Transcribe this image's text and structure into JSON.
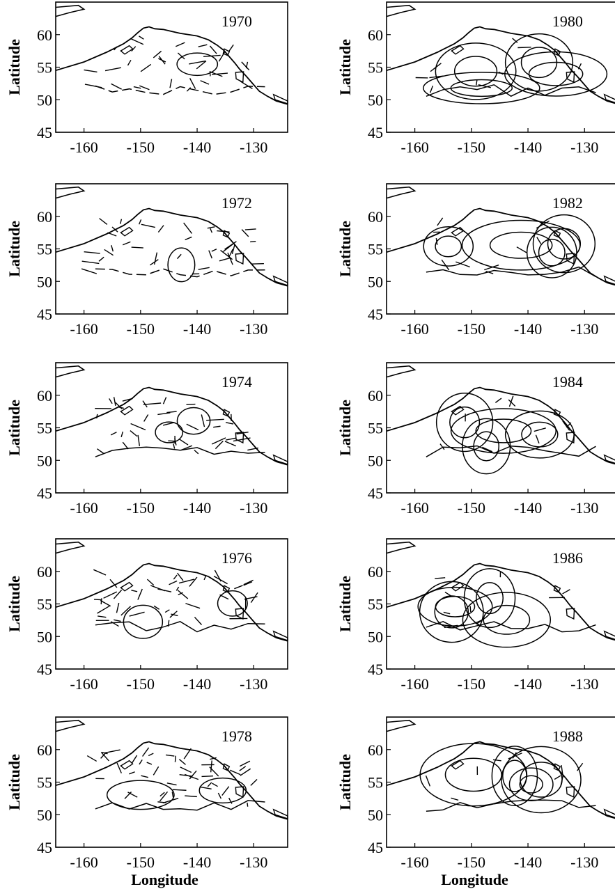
{
  "figure": {
    "x_label": "Longitude",
    "y_label": "Latitude",
    "x_ticks": [
      -160,
      -150,
      -140,
      -130
    ],
    "y_ticks": [
      45,
      50,
      55,
      60
    ],
    "x_range": [
      -165,
      -124
    ],
    "y_range": [
      45,
      65
    ],
    "line_color": "#000000",
    "background": "#ffffff"
  },
  "panels": [
    {
      "year": "1970",
      "column": "left",
      "row": 1
    },
    {
      "year": "1972",
      "column": "left",
      "row": 2
    },
    {
      "year": "1974",
      "column": "left",
      "row": 3
    },
    {
      "year": "1976",
      "column": "left",
      "row": 4
    },
    {
      "year": "1978",
      "column": "left",
      "row": 5
    },
    {
      "year": "1980",
      "column": "right",
      "row": 1
    },
    {
      "year": "1982",
      "column": "right",
      "row": 2
    },
    {
      "year": "1984",
      "column": "right",
      "row": 3
    },
    {
      "year": "1986",
      "column": "right",
      "row": 4
    },
    {
      "year": "1988",
      "column": "right",
      "row": 5
    }
  ]
}
